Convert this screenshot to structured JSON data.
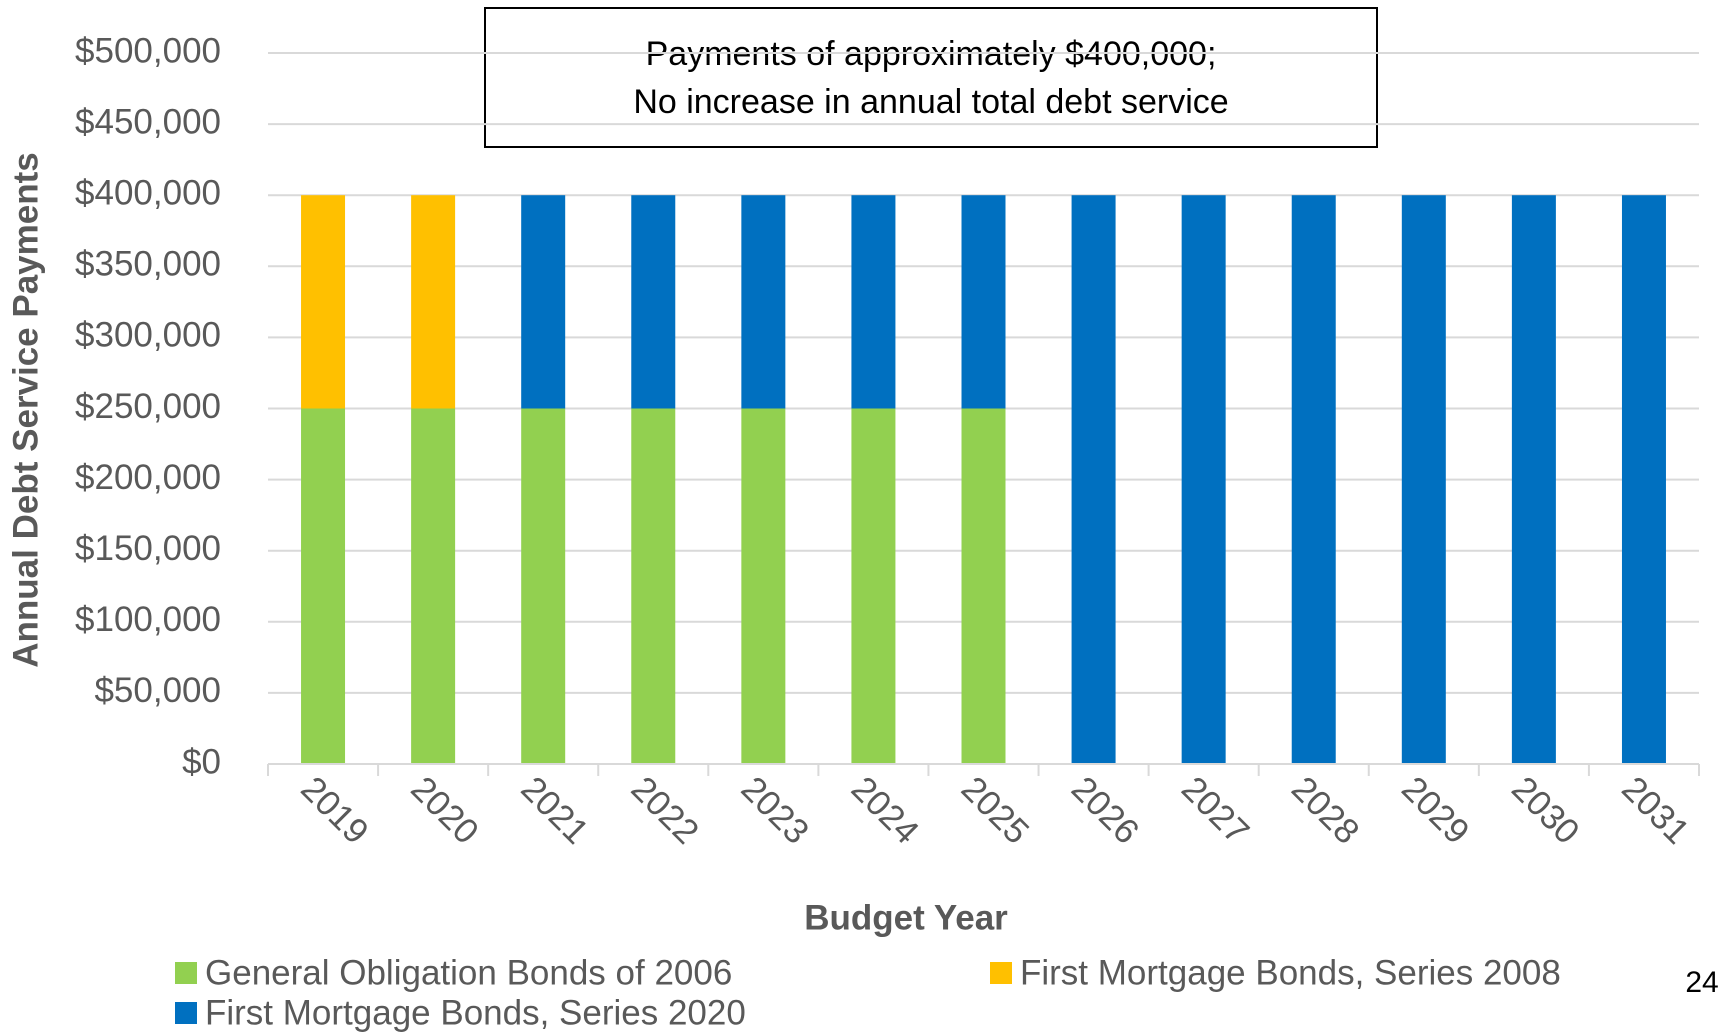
{
  "chart_data": {
    "type": "stacked_bar",
    "annotation": [
      "Payments of approximately $400,000;",
      "No increase in annual total debt service"
    ],
    "x_label": "Budget Year",
    "y_label": "Annual Debt Service Payments",
    "page_number": "24",
    "categories": [
      "2019",
      "2020",
      "2021",
      "2022",
      "2023",
      "2024",
      "2025",
      "2026",
      "2027",
      "2028",
      "2029",
      "2030",
      "2031"
    ],
    "series": [
      {
        "name": "General Obligation Bonds of 2006",
        "color": "#92d050",
        "values": [
          250000,
          250000,
          250000,
          250000,
          250000,
          250000,
          250000,
          null,
          null,
          null,
          null,
          null,
          null
        ]
      },
      {
        "name": "First Mortgage Bonds, Series 2008",
        "color": "#ffc000",
        "values": [
          150000,
          150000,
          null,
          null,
          null,
          null,
          null,
          null,
          null,
          null,
          null,
          null,
          null
        ]
      },
      {
        "name": "First Mortgage Bonds, Series 2020",
        "color": "#0070c0",
        "values": [
          null,
          null,
          150000,
          150000,
          150000,
          150000,
          150000,
          400000,
          400000,
          400000,
          400000,
          400000,
          400000
        ]
      }
    ],
    "ylim": [
      0,
      500000
    ],
    "yticks": [
      {
        "value": 0,
        "label": "$0"
      },
      {
        "value": 50000,
        "label": "$50,000"
      },
      {
        "value": 100000,
        "label": "$100,000"
      },
      {
        "value": 150000,
        "label": "$150,000"
      },
      {
        "value": 200000,
        "label": "$200,000"
      },
      {
        "value": 250000,
        "label": "$250,000"
      },
      {
        "value": 300000,
        "label": "$300,000"
      },
      {
        "value": 350000,
        "label": "$350,000"
      },
      {
        "value": 400000,
        "label": "$400,000"
      },
      {
        "value": 450000,
        "label": "$450,000"
      },
      {
        "value": 500000,
        "label": "$500,000"
      }
    ],
    "grid": true
  }
}
